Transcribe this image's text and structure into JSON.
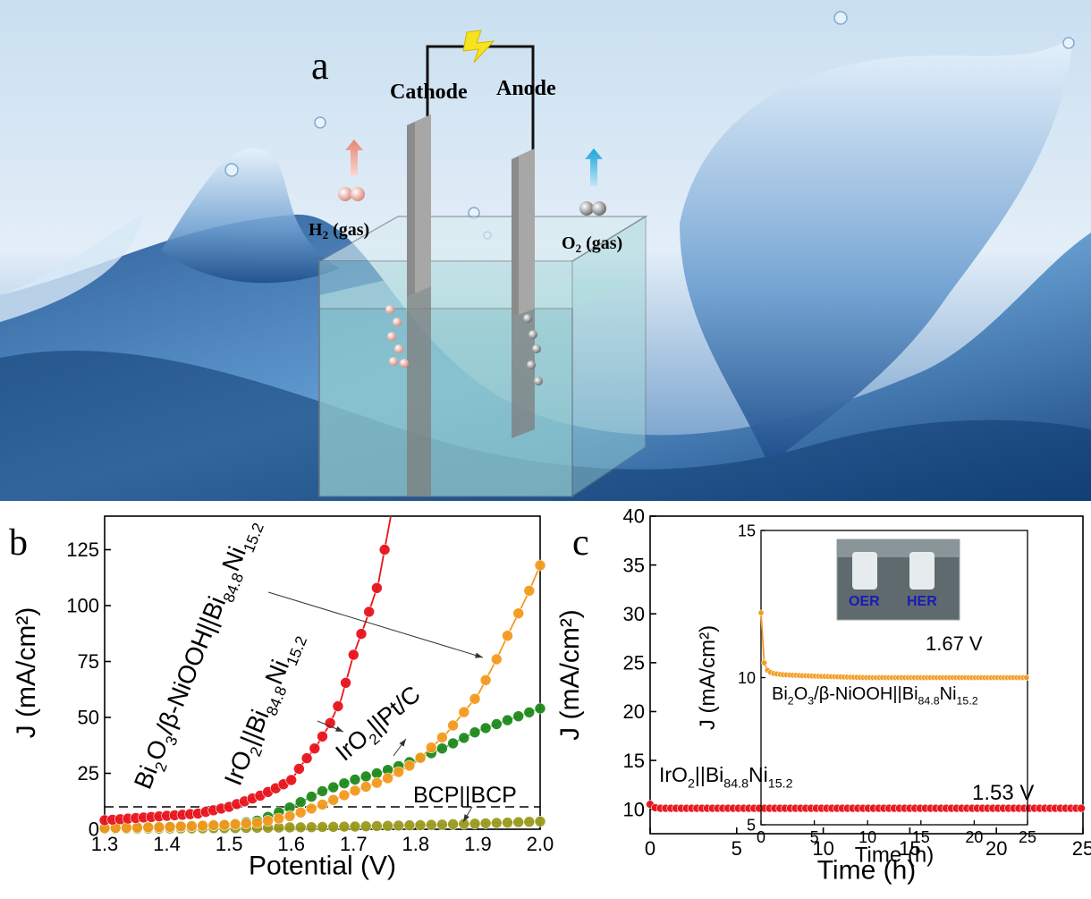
{
  "figure": {
    "panel_a": {
      "label": "a",
      "cathode": "Cathode",
      "anode": "Anode",
      "h2_label": {
        "base": "H",
        "sub": "2",
        "rest": " (gas)"
      },
      "o2_label": {
        "base": "O",
        "sub": "2",
        "rest": " (gas)"
      }
    },
    "panel_b_label": "b",
    "panel_c_label": "c"
  },
  "chart_data": [
    {
      "id": "b",
      "type": "line",
      "xlabel": "Potential (V)",
      "ylabel": "J (mA/cm²)",
      "xlim": [
        1.3,
        2.0
      ],
      "ylim": [
        0,
        140
      ],
      "xticks": [
        "1.3",
        "1.4",
        "1.5",
        "1.6",
        "1.7",
        "1.8",
        "1.9",
        "2.0"
      ],
      "yticks": [
        "0",
        "25",
        "50",
        "75",
        "100",
        "125"
      ],
      "reference_line": {
        "y": 10,
        "style": "dashed"
      },
      "series": [
        {
          "id": "bi2o3",
          "color": "#e8141c",
          "x": [
            1.3,
            1.35,
            1.4,
            1.45,
            1.5,
            1.55,
            1.58,
            1.6,
            1.62,
            1.64,
            1.66,
            1.68,
            1.7,
            1.72,
            1.74,
            1.76
          ],
          "y": [
            4,
            5,
            6,
            7,
            10,
            15,
            19,
            22,
            30,
            37,
            46,
            58,
            78,
            93,
            110,
            140
          ]
        },
        {
          "id": "iro2_bini",
          "color": "#f39a1e",
          "x": [
            1.3,
            1.4,
            1.5,
            1.55,
            1.6,
            1.65,
            1.7,
            1.75,
            1.8,
            1.85,
            1.9,
            1.93,
            1.95,
            1.98,
            2.0
          ],
          "y": [
            0.5,
            1,
            2,
            3,
            6,
            11,
            17,
            22,
            30,
            43,
            60,
            76,
            88,
            105,
            118
          ]
        },
        {
          "id": "iro2_ptc",
          "color": "#1f8a1c",
          "x": [
            1.3,
            1.4,
            1.5,
            1.55,
            1.6,
            1.65,
            1.7,
            1.75,
            1.8,
            1.85,
            1.9,
            1.95,
            2.0
          ],
          "y": [
            0.5,
            1,
            2,
            4,
            10,
            17,
            22,
            26,
            31,
            37,
            44,
            49,
            54
          ]
        },
        {
          "id": "bcp",
          "color": "#9a9a1e",
          "x": [
            1.3,
            1.4,
            1.5,
            1.6,
            1.7,
            1.8,
            1.9,
            2.0
          ],
          "y": [
            0.2,
            0.3,
            0.5,
            0.8,
            1.2,
            1.8,
            2.5,
            3.5
          ]
        }
      ],
      "annotations": {
        "bi2o3": {
          "parts": [
            [
              "",
              "Bi"
            ],
            [
              "sub",
              "2"
            ],
            [
              "",
              "O"
            ],
            [
              "sub",
              "3"
            ],
            [
              "",
              "/β-NiOOH||Bi"
            ],
            [
              "sub",
              "84.8"
            ],
            [
              "",
              "Ni"
            ],
            [
              "sub",
              "15.2"
            ]
          ]
        },
        "iro2_bini": {
          "parts": [
            [
              "",
              "IrO"
            ],
            [
              "sub",
              "2"
            ],
            [
              "",
              "||Bi"
            ],
            [
              "sub",
              "84.8"
            ],
            [
              "",
              "Ni"
            ],
            [
              "sub",
              "15.2"
            ]
          ]
        },
        "iro2_ptc": {
          "parts": [
            [
              "",
              "IrO"
            ],
            [
              "sub",
              "2"
            ],
            [
              "",
              "||Pt/C"
            ]
          ]
        },
        "bcp": "BCP||BCP"
      }
    },
    {
      "id": "c",
      "type": "line",
      "xlabel": "Time (h)",
      "ylabel": "J (mA/cm²)",
      "xlim": [
        0,
        25
      ],
      "ylim": [
        7.5,
        40
      ],
      "xticks": [
        "0",
        "5",
        "10",
        "15",
        "20",
        "25"
      ],
      "yticks": [
        "10",
        "15",
        "20",
        "25",
        "30",
        "35",
        "40"
      ],
      "series": [
        {
          "id": "iro2_bini",
          "color": "#e8141c",
          "x": [
            0,
            0.2,
            0.5,
            1,
            5,
            10,
            15,
            20,
            25
          ],
          "y": [
            10.5,
            10.2,
            10.1,
            10.1,
            10.1,
            10.1,
            10.1,
            10.1,
            10.1
          ]
        }
      ],
      "voltage_label": "1.53 V",
      "series_label": {
        "parts": [
          [
            "",
            "IrO"
          ],
          [
            "sub",
            "2"
          ],
          [
            "",
            "||Bi"
          ],
          [
            "sub",
            "84.8"
          ],
          [
            "",
            "Ni"
          ],
          [
            "sub",
            "15.2"
          ]
        ]
      },
      "inset": {
        "type": "line",
        "xlabel": "Time (h)",
        "ylabel": "J (mA/cm²)",
        "xlim": [
          0,
          25
        ],
        "ylim": [
          5,
          15
        ],
        "xticks": [
          "0",
          "5",
          "10",
          "15",
          "20",
          "25"
        ],
        "yticks": [
          "5",
          "10",
          "15"
        ],
        "series": [
          {
            "id": "bi2o3",
            "color": "#f39a1e",
            "x": [
              0,
              0.3,
              0.6,
              1,
              2,
              5,
              10,
              15,
              20,
              25
            ],
            "y": [
              12.2,
              10.5,
              10.25,
              10.15,
              10.1,
              10.05,
              10.0,
              10.0,
              10.0,
              10.0
            ]
          }
        ],
        "voltage_label": "1.67 V",
        "series_label": {
          "parts": [
            [
              "",
              "Bi"
            ],
            [
              "sub",
              "2"
            ],
            [
              "",
              "O"
            ],
            [
              "sub",
              "3"
            ],
            [
              "",
              "/β-NiOOH||Bi"
            ],
            [
              "sub",
              "84.8"
            ],
            [
              "",
              "Ni"
            ],
            [
              "sub",
              "15.2"
            ]
          ]
        },
        "photo_labels": [
          "OER",
          "HER"
        ]
      }
    }
  ]
}
